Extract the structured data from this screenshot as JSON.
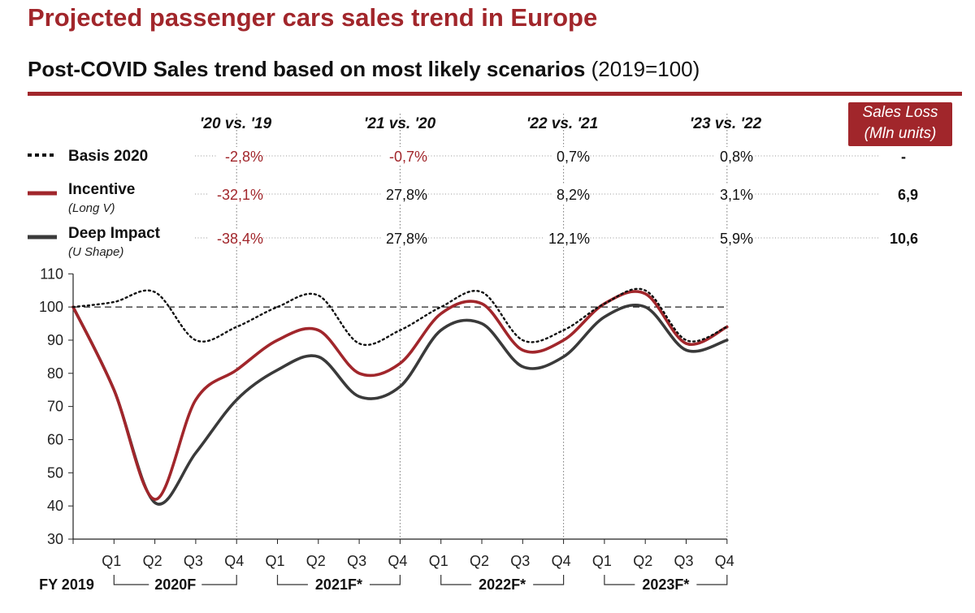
{
  "title": "Projected passenger cars sales trend in Europe",
  "subtitle_bold": "Post-COVID Sales trend based on most likely scenarios",
  "subtitle_normal": "(2019=100)",
  "sales_loss_header": {
    "line1": "Sales Loss",
    "line2": "(Mln units)"
  },
  "colors": {
    "accent": "#a1262b",
    "basis": "#111111",
    "incentive": "#a1262b",
    "deep": "#3a3a3a",
    "negative_text": "#a1262b"
  },
  "chart_data": {
    "type": "line",
    "ylim": [
      30,
      110
    ],
    "yticks": [
      30,
      40,
      50,
      60,
      70,
      80,
      90,
      100,
      110
    ],
    "x_labels": [
      "",
      "Q1",
      "Q2",
      "Q3",
      "Q4",
      "Q1",
      "Q2",
      "Q3",
      "Q4",
      "Q1",
      "Q2",
      "Q3",
      "Q4",
      "Q1",
      "Q2",
      "Q3",
      "Q4"
    ],
    "fy_label": "FY 2019",
    "years": [
      {
        "label": "2020F",
        "from": 1,
        "to": 4
      },
      {
        "label": "2021F*",
        "from": 5,
        "to": 8
      },
      {
        "label": "2022F*",
        "from": 9,
        "to": 12
      },
      {
        "label": "2023F*",
        "from": 13,
        "to": 16
      }
    ],
    "reference_line": 100,
    "period_headers": [
      "'20 vs. '19",
      "'21 vs. '20",
      "'22 vs. '21",
      "'23 vs. '22"
    ],
    "series": [
      {
        "name": "Basis 2020",
        "sub": "",
        "style": "dotted",
        "values": [
          100,
          101.5,
          104.5,
          90,
          94,
          100,
          103.5,
          89,
          93,
          100,
          104.5,
          90,
          93,
          101,
          105,
          90,
          94
        ],
        "changes": [
          "-2,8%",
          "-0,7%",
          "0,7%",
          "0,8%"
        ],
        "loss": "-"
      },
      {
        "name": "Incentive",
        "sub": "(Long V)",
        "style": "solid",
        "values": [
          100,
          75,
          42,
          72,
          81,
          90,
          93,
          80,
          83,
          98,
          101,
          87,
          90,
          101,
          104,
          89,
          94
        ],
        "changes": [
          "-32,1%",
          "27,8%",
          "8,2%",
          "3,1%"
        ],
        "loss": "6,9"
      },
      {
        "name": "Deep Impact",
        "sub": "(U Shape)",
        "style": "solid",
        "values": [
          100,
          75,
          41,
          56,
          72,
          81,
          85,
          73,
          76,
          93,
          95,
          82,
          85,
          97,
          100,
          87,
          90
        ],
        "changes": [
          "-38,4%",
          "27,8%",
          "12,1%",
          "5,9%"
        ],
        "loss": "10,6"
      }
    ]
  }
}
